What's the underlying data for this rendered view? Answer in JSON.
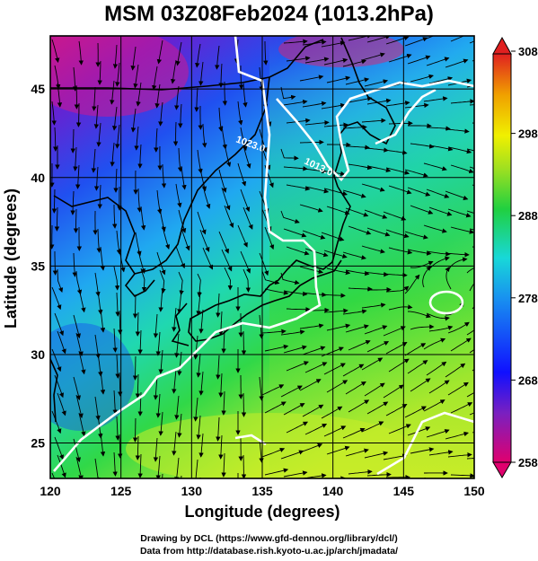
{
  "title": "MSM 03Z08Feb2024 (1013.2hPa)",
  "map": {
    "lon_range": [
      120,
      150
    ],
    "lat_range": [
      23,
      48
    ],
    "x_ticks": [
      120,
      125,
      130,
      135,
      140,
      145,
      150
    ],
    "y_ticks": [
      25,
      30,
      35,
      40,
      45
    ],
    "xlabel": "Longitude (degrees)",
    "ylabel": "Latitude  (degrees)",
    "contour_label_1": "1023.0",
    "contour_label_2": "1013.0"
  },
  "colorbar": {
    "ticks": [
      308,
      298,
      288,
      278,
      268,
      258
    ],
    "range": [
      258,
      308
    ],
    "colors": [
      "#e0006e",
      "#1010ff",
      "#18c8e8",
      "#20d040",
      "#f0f000",
      "#e02020"
    ]
  },
  "credits": {
    "line1": "Drawing by DCL (https://www.gfd-dennou.org/library/dcl/)",
    "line2": "Data from http://database.rish.kyoto-u.ac.jp/arch/jmadata/"
  }
}
